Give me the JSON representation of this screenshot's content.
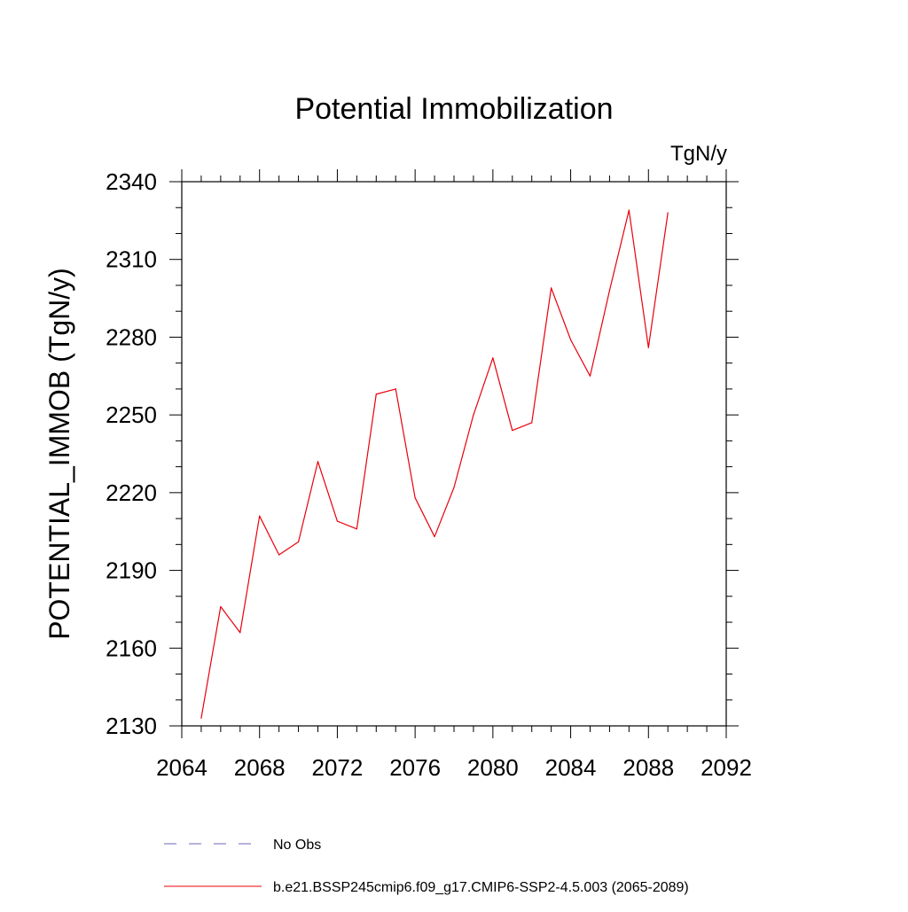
{
  "chart_data": {
    "type": "line",
    "title": "Potential Immobilization",
    "units_label": "TgN/y",
    "ylabel": "POTENTIAL_IMMOB  (TgN/y)",
    "xlabel": "",
    "xlim": [
      2064,
      2092
    ],
    "ylim": [
      2130,
      2340
    ],
    "xticks": [
      2064,
      2068,
      2072,
      2076,
      2080,
      2084,
      2088,
      2092
    ],
    "yticks": [
      2130,
      2160,
      2190,
      2220,
      2250,
      2280,
      2310,
      2340
    ],
    "x_minor_step": 1,
    "y_minor_step": 10,
    "grid": false,
    "series": [
      {
        "name": "b.e21.BSSP245cmip6.f09_g17.CMIP6-SSP2-4.5.003 (2065-2089)",
        "color": "#e8000b",
        "dash": "solid",
        "x": [
          2065,
          2066,
          2067,
          2068,
          2069,
          2070,
          2071,
          2072,
          2073,
          2074,
          2075,
          2076,
          2077,
          2078,
          2079,
          2080,
          2081,
          2082,
          2083,
          2084,
          2085,
          2086,
          2087,
          2088,
          2089
        ],
        "y": [
          2133,
          2176,
          2166,
          2211,
          2196,
          2201,
          2232,
          2209,
          2206,
          2258,
          2260,
          2218,
          2203,
          2222,
          2250,
          2272,
          2244,
          2247,
          2299,
          2279,
          2265,
          2298,
          2329,
          2276,
          2328
        ]
      }
    ],
    "legend": {
      "placement": "bottom",
      "entries": [
        {
          "label": "No Obs",
          "color": "#6a6ab8",
          "dash": "dashed"
        },
        {
          "label": "b.e21.BSSP245cmip6.f09_g17.CMIP6-SSP2-4.5.003 (2065-2089)",
          "color": "#e8000b",
          "dash": "solid"
        }
      ]
    }
  }
}
